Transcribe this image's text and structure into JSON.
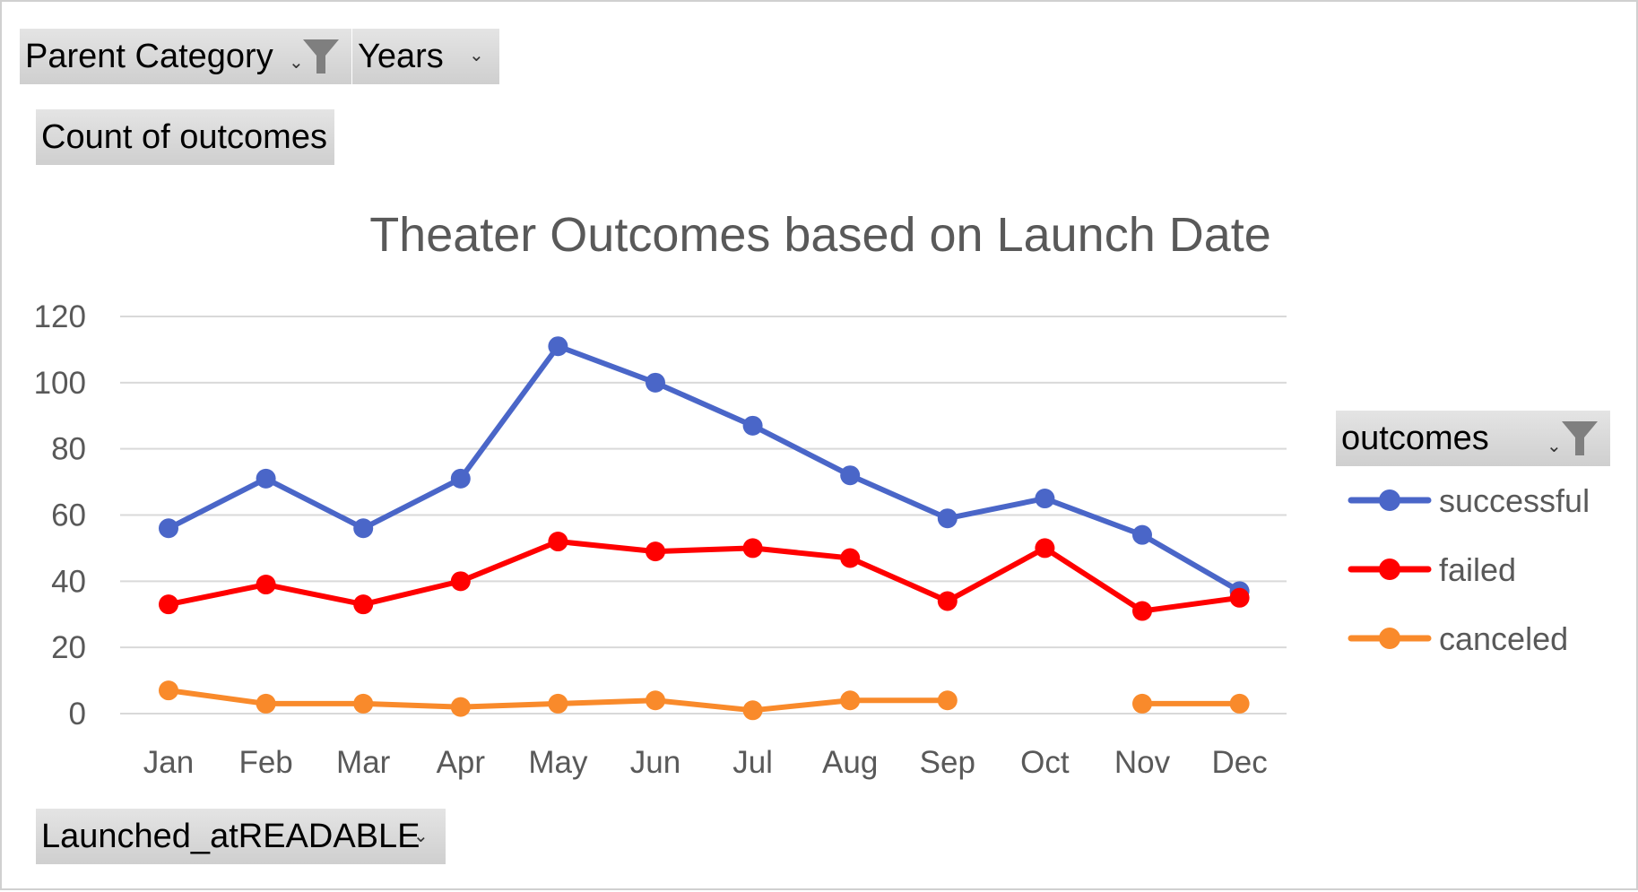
{
  "pivot_fields": {
    "parent_category": "Parent Category",
    "years": "Years",
    "value_field": "Count of outcomes",
    "axis_field": "Launched_atREADABLE",
    "legend_field": "outcomes"
  },
  "icons": {
    "filter": "filter-icon",
    "dropdown": "dropdown-arrow-icon"
  },
  "chart_data": {
    "type": "line",
    "title": "Theater Outcomes based on Launch Date",
    "xlabel": "",
    "ylabel": "",
    "categories": [
      "Jan",
      "Feb",
      "Mar",
      "Apr",
      "May",
      "Jun",
      "Jul",
      "Aug",
      "Sep",
      "Oct",
      "Nov",
      "Dec"
    ],
    "ylim": [
      0,
      120
    ],
    "yticks": [
      0,
      20,
      40,
      60,
      80,
      100,
      120
    ],
    "grid": true,
    "legend_position": "right",
    "series": [
      {
        "name": "successful",
        "color": "#4A66C8",
        "values": [
          56,
          71,
          56,
          71,
          111,
          100,
          87,
          72,
          59,
          65,
          54,
          37
        ]
      },
      {
        "name": "failed",
        "color": "#FF0000",
        "values": [
          33,
          39,
          33,
          40,
          52,
          49,
          50,
          47,
          34,
          50,
          31,
          35
        ]
      },
      {
        "name": "canceled",
        "color": "#F98A2B",
        "values": [
          7,
          3,
          3,
          2,
          3,
          4,
          1,
          4,
          4,
          null,
          3,
          3
        ]
      }
    ]
  }
}
